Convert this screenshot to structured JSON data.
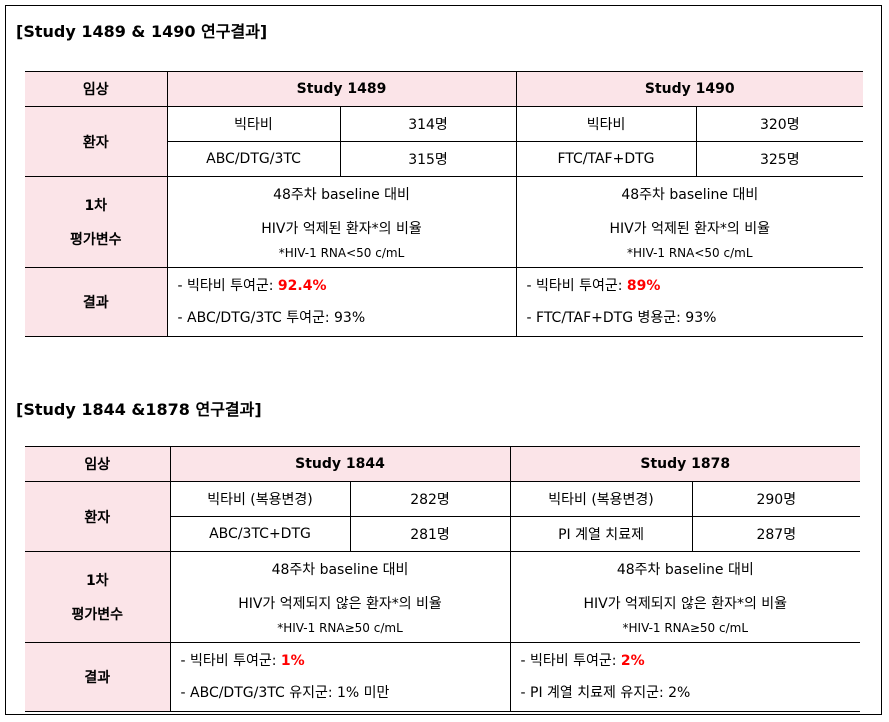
{
  "sections": [
    {
      "title": "[Study 1489 & 1490  연구결과]",
      "header": {
        "label": "임상",
        "study_a": "Study 1489",
        "study_b": "Study 1490"
      },
      "patients": {
        "label": "환자",
        "a": [
          {
            "arm": "빅타비",
            "n": "314명"
          },
          {
            "arm": "ABC/DTG/3TC",
            "n": "315명"
          }
        ],
        "b": [
          {
            "arm": "빅타비",
            "n": "320명"
          },
          {
            "arm": "FTC/TAF+DTG",
            "n": "325명"
          }
        ]
      },
      "endpoint": {
        "label_1": "1차",
        "label_2": "평가변수",
        "a": {
          "line1": "48주차  baseline  대비",
          "line2": "HIV가  억제된  환자*의  비율",
          "note": "*HIV-1 RNA<50 c/mL"
        },
        "b": {
          "line1": "48주차  baseline  대비",
          "line2": "HIV가  억제된  환자*의  비율",
          "note": "*HIV-1 RNA<50 c/mL"
        }
      },
      "results": {
        "label": "결과",
        "a": {
          "line1_prefix": "-  빅타비  투여군: ",
          "line1_value": "92.4%",
          "line2": "- ABC/DTG/3TC  투여군: 93%"
        },
        "b": {
          "line1_prefix": "-  빅타비  투여군: ",
          "line1_value": "89%",
          "line2": "- FTC/TAF+DTG  병용군: 93%"
        }
      }
    },
    {
      "title": "[Study 1844 &1878  연구결과]",
      "header": {
        "label": "임상",
        "study_a": "Study 1844",
        "study_b": "Study 1878"
      },
      "patients": {
        "label": "환자",
        "a": [
          {
            "arm": "빅타비  (복용변경)",
            "n": "282명"
          },
          {
            "arm": "ABC/3TC+DTG",
            "n": "281명"
          }
        ],
        "b": [
          {
            "arm": "빅타비  (복용변경)",
            "n": "290명"
          },
          {
            "arm": "PI  계열  치료제",
            "n": "287명"
          }
        ]
      },
      "endpoint": {
        "label_1": "1차",
        "label_2": "평가변수",
        "a": {
          "line1": "48주차  baseline  대비",
          "line2": "HIV가  억제되지  않은  환자*의  비율",
          "note": "*HIV-1 RNA≥50 c/mL"
        },
        "b": {
          "line1": "48주차  baseline  대비",
          "line2": "HIV가  억제되지  않은  환자*의  비율",
          "note": "*HIV-1 RNA≥50 c/mL"
        }
      },
      "results": {
        "label": "결과",
        "a": {
          "line1_prefix": "-  빅타비  투여군: ",
          "line1_value": "1%",
          "line2": "- ABC/DTG/3TC  유지군: 1%  미만"
        },
        "b": {
          "line1_prefix": "-  빅타비  투여군: ",
          "line1_value": "2%",
          "line2": "- PI  계열  치료제  유지군: 2%"
        }
      }
    }
  ]
}
